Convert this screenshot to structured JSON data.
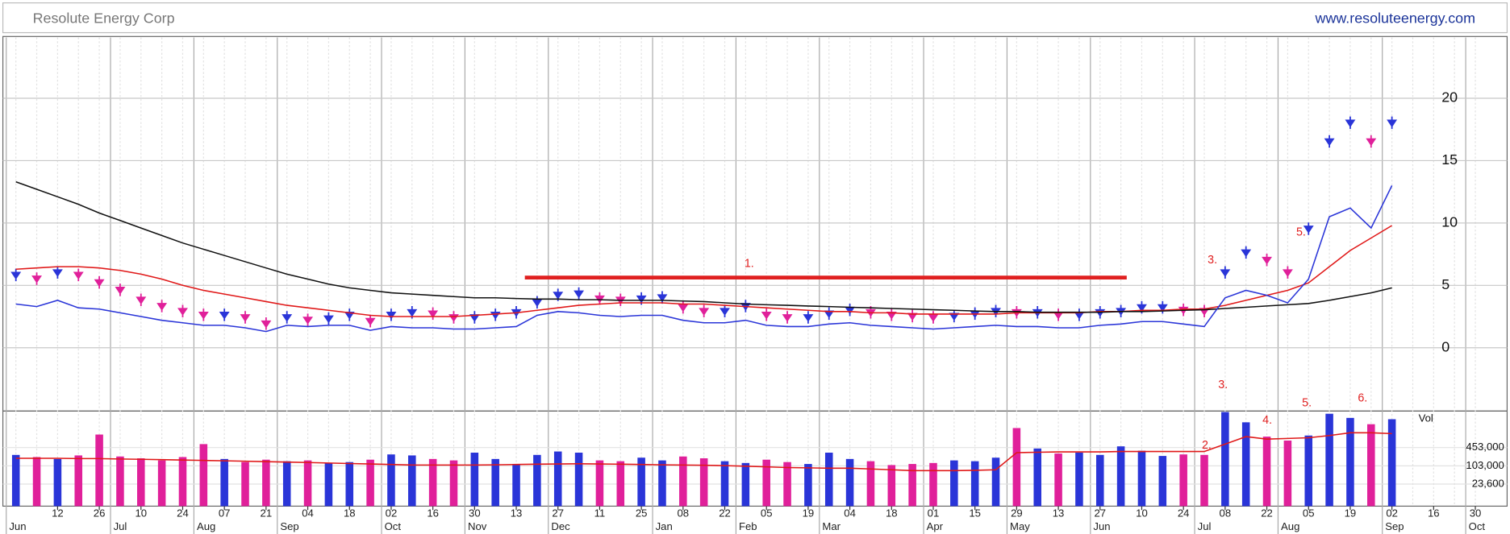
{
  "header": {
    "title": "Resolute Energy Corp",
    "url": "www.resoluteenergy.com"
  },
  "chart_data": [
    {
      "type": "line",
      "ylim": [
        -5,
        24.8
      ],
      "yticks": [
        0,
        5,
        10,
        15,
        20
      ],
      "grid": true,
      "annotations": [
        "1.",
        "3.",
        "5.",
        "3.",
        "5.",
        "6."
      ],
      "series": [
        {
          "color": "#2a35d8",
          "down_color": "#e0209a",
          "marker": true,
          "values": [
            5.8,
            5.5,
            6.0,
            5.8,
            5.2,
            4.6,
            3.8,
            3.3,
            2.9,
            2.6,
            2.6,
            2.4,
            1.9,
            2.4,
            2.2,
            2.3,
            2.6,
            2.1,
            2.6,
            2.8,
            2.7,
            2.4,
            2.4,
            2.6,
            2.8,
            3.6,
            4.2,
            4.3,
            3.9,
            3.8,
            3.9,
            4.0,
            3.2,
            2.9,
            2.9,
            3.3,
            2.6,
            2.4,
            2.4,
            2.7,
            3.0,
            2.8,
            2.6,
            2.5,
            2.4,
            2.5,
            2.7,
            2.9,
            2.8,
            2.8,
            2.6,
            2.6,
            2.8,
            2.9,
            3.2,
            3.2,
            3.0,
            2.9,
            6.0,
            7.6,
            7.0,
            6.0,
            9.5,
            16.5,
            18.0,
            16.5,
            18.0,
            null,
            null,
            null,
            null
          ]
        },
        {
          "color": "#e01818",
          "values": [
            6.3,
            6.4,
            6.5,
            6.5,
            6.4,
            6.2,
            5.9,
            5.5,
            5.0,
            4.6,
            4.3,
            4.0,
            3.7,
            3.4,
            3.2,
            3.0,
            2.8,
            2.6,
            2.5,
            2.5,
            2.5,
            2.5,
            2.6,
            2.7,
            2.8,
            3.0,
            3.2,
            3.4,
            3.5,
            3.6,
            3.6,
            3.6,
            3.5,
            3.5,
            3.4,
            3.3,
            3.2,
            3.1,
            3.0,
            2.9,
            2.9,
            2.8,
            2.8,
            2.7,
            2.7,
            2.7,
            2.7,
            2.7,
            2.8,
            2.8,
            2.8,
            2.8,
            2.9,
            2.9,
            3.0,
            3.0,
            3.1,
            3.1,
            3.4,
            3.8,
            4.2,
            4.6,
            5.2,
            6.5,
            7.8,
            8.8,
            9.8,
            null,
            null,
            null,
            null
          ]
        },
        {
          "color": "#111111",
          "values": [
            13.3,
            12.7,
            12.1,
            11.5,
            10.8,
            10.2,
            9.6,
            9.0,
            8.4,
            7.9,
            7.4,
            6.9,
            6.4,
            5.9,
            5.5,
            5.1,
            4.8,
            4.6,
            4.4,
            4.3,
            4.2,
            4.1,
            4.0,
            4.0,
            3.95,
            3.9,
            3.9,
            3.85,
            3.85,
            3.8,
            3.8,
            3.8,
            3.75,
            3.7,
            3.6,
            3.5,
            3.45,
            3.4,
            3.35,
            3.3,
            3.25,
            3.2,
            3.15,
            3.1,
            3.05,
            3.0,
            2.95,
            2.9,
            2.9,
            2.85,
            2.85,
            2.85,
            2.85,
            2.9,
            2.9,
            2.95,
            3.0,
            3.05,
            3.15,
            3.25,
            3.35,
            3.45,
            3.55,
            3.8,
            4.1,
            4.4,
            4.8,
            null,
            null,
            null,
            null
          ]
        },
        {
          "color": "#2a35d8",
          "values": [
            3.5,
            3.3,
            3.8,
            3.2,
            3.1,
            2.8,
            2.5,
            2.2,
            2.0,
            1.8,
            1.8,
            1.6,
            1.3,
            1.8,
            1.7,
            1.8,
            1.8,
            1.4,
            1.7,
            1.6,
            1.6,
            1.5,
            1.5,
            1.6,
            1.7,
            2.6,
            2.9,
            2.8,
            2.6,
            2.5,
            2.6,
            2.6,
            2.2,
            2.0,
            2.0,
            2.2,
            1.8,
            1.7,
            1.7,
            1.9,
            2.0,
            1.8,
            1.7,
            1.6,
            1.5,
            1.6,
            1.7,
            1.8,
            1.7,
            1.7,
            1.6,
            1.6,
            1.8,
            1.9,
            2.1,
            2.1,
            1.9,
            1.7,
            4.0,
            4.6,
            4.2,
            3.6,
            5.5,
            10.5,
            11.2,
            9.6,
            13.0,
            null,
            null,
            null,
            null
          ]
        }
      ]
    },
    {
      "type": "bar",
      "ylabel": "Vol",
      "log_scale": true,
      "ylim": [
        3950,
        8700000
      ],
      "yticks": [
        {
          "value": 23600,
          "label": "23,600"
        },
        {
          "value": 103000,
          "label": "103,000"
        },
        {
          "value": 453000,
          "label": "453,000"
        }
      ],
      "annotations": [
        "2.",
        "4."
      ],
      "categories": [
        null,
        null,
        "12",
        null,
        "26",
        null,
        "10",
        null,
        "24",
        null,
        "07",
        null,
        "21",
        null,
        "04",
        null,
        "18",
        null,
        "02",
        null,
        "16",
        null,
        "30",
        null,
        "13",
        null,
        "27",
        null,
        "11",
        null,
        "25",
        null,
        "08",
        null,
        "22",
        null,
        "05",
        null,
        "19",
        null,
        "04",
        null,
        "18",
        null,
        "01",
        null,
        "15",
        null,
        "29",
        null,
        "13",
        null,
        "27",
        null,
        "10",
        null,
        "24",
        null,
        "08",
        null,
        "22",
        null,
        "05",
        null,
        "19",
        null,
        "02",
        null,
        "16",
        null,
        "30"
      ],
      "months": [
        "Jun",
        null,
        null,
        null,
        null,
        "Jul",
        null,
        null,
        null,
        "Aug",
        null,
        null,
        null,
        "Sep",
        null,
        null,
        null,
        null,
        "Oct",
        null,
        null,
        null,
        "Nov",
        null,
        null,
        null,
        "Dec",
        null,
        null,
        null,
        null,
        "Jan",
        null,
        null,
        null,
        "Feb",
        null,
        null,
        null,
        "Mar",
        null,
        null,
        null,
        null,
        "Apr",
        null,
        null,
        null,
        "May",
        null,
        null,
        null,
        "Jun",
        null,
        null,
        null,
        null,
        "Jul",
        null,
        null,
        null,
        "Aug",
        null,
        null,
        null,
        null,
        "Sep",
        null,
        null,
        null,
        "Oct"
      ],
      "series": [
        {
          "color": "#2a35d8",
          "down_color": "#e0209a",
          "values": [
            250000,
            210000,
            180000,
            240000,
            1300000,
            220000,
            190000,
            160000,
            210000,
            600000,
            180000,
            140000,
            170000,
            150000,
            160000,
            130000,
            140000,
            170000,
            260000,
            240000,
            180000,
            160000,
            300000,
            180000,
            120000,
            250000,
            330000,
            300000,
            160000,
            150000,
            200000,
            160000,
            220000,
            190000,
            150000,
            130000,
            170000,
            140000,
            120000,
            300000,
            180000,
            150000,
            110000,
            120000,
            130000,
            160000,
            150000,
            200000,
            2200000,
            420000,
            280000,
            300000,
            250000,
            500000,
            350000,
            230000,
            260000,
            250000,
            9000000,
            3500000,
            1100000,
            800000,
            1200000,
            7000000,
            5000000,
            3000000,
            4500000,
            null,
            null,
            null,
            null
          ]
        },
        {
          "color": "#e01818",
          "values": [
            190000,
            190000,
            190000,
            185000,
            185000,
            180000,
            175000,
            170000,
            165000,
            160000,
            155000,
            150000,
            145000,
            140000,
            135000,
            130000,
            125000,
            120000,
            115000,
            110000,
            110000,
            110000,
            110000,
            112000,
            115000,
            118000,
            120000,
            122000,
            120000,
            118000,
            115000,
            112000,
            110000,
            108000,
            105000,
            100000,
            95000,
            90000,
            88000,
            85000,
            85000,
            80000,
            75000,
            70000,
            70000,
            70000,
            72000,
            75000,
            300000,
            310000,
            320000,
            320000,
            320000,
            330000,
            330000,
            330000,
            330000,
            330000,
            600000,
            1100000,
            900000,
            950000,
            1000000,
            1200000,
            1500000,
            1500000,
            1400000,
            null,
            null,
            null,
            null
          ]
        }
      ]
    }
  ]
}
